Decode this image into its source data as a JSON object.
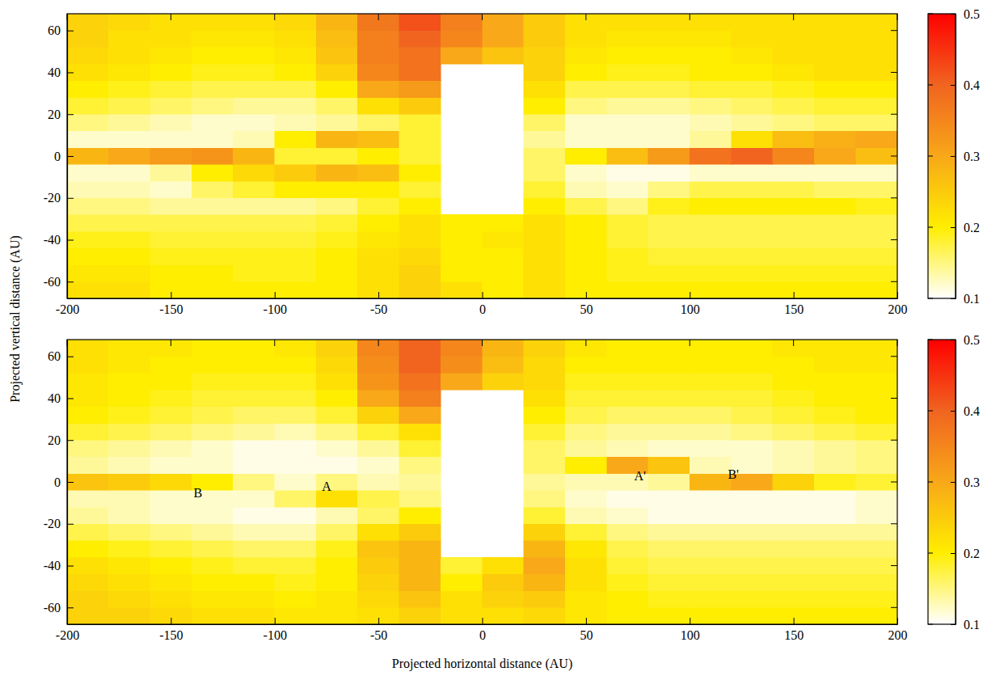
{
  "chart_data": [
    {
      "type": "heatmap",
      "y_label": "Projected vertical distance (AU)",
      "xlim": [
        -200,
        200
      ],
      "ylim": [
        -68,
        68
      ],
      "xticks": [
        -200,
        -150,
        -100,
        -50,
        0,
        50,
        100,
        150,
        200
      ],
      "yticks": [
        -60,
        -40,
        -20,
        0,
        20,
        40,
        60
      ],
      "x_edges": [
        -200,
        -180,
        -160,
        -140,
        -120,
        -100,
        -80,
        -60,
        -40,
        -20,
        0,
        20,
        40,
        60,
        80,
        100,
        120,
        140,
        160,
        180,
        200
      ],
      "y_edges": [
        -68,
        -60,
        -52,
        -44,
        -36,
        -28,
        -20,
        -12,
        -4,
        4,
        12,
        20,
        28,
        36,
        44,
        52,
        60,
        68
      ],
      "z": [
        [
          0.22,
          0.22,
          0.2,
          0.2,
          0.2,
          0.2,
          0.2,
          0.22,
          0.24,
          0.22,
          0.2,
          0.22,
          0.2,
          0.2,
          0.2,
          0.2,
          0.2,
          0.2,
          0.2,
          0.2
        ],
        [
          0.21,
          0.21,
          0.2,
          0.2,
          0.19,
          0.19,
          0.2,
          0.22,
          0.24,
          0.2,
          0.2,
          0.22,
          0.2,
          0.19,
          0.19,
          0.19,
          0.19,
          0.19,
          0.19,
          0.19
        ],
        [
          0.2,
          0.2,
          0.19,
          0.19,
          0.19,
          0.19,
          0.2,
          0.22,
          0.23,
          0.2,
          0.2,
          0.22,
          0.2,
          0.19,
          0.18,
          0.18,
          0.18,
          0.18,
          0.18,
          0.18
        ],
        [
          0.19,
          0.19,
          0.18,
          0.18,
          0.18,
          0.18,
          0.19,
          0.21,
          0.22,
          0.2,
          0.21,
          0.22,
          0.2,
          0.18,
          0.17,
          0.17,
          0.17,
          0.17,
          0.17,
          0.17
        ],
        [
          0.17,
          0.17,
          0.17,
          0.17,
          0.17,
          0.17,
          0.18,
          0.2,
          0.22,
          0.2,
          0.2,
          0.22,
          0.2,
          0.18,
          0.17,
          0.17,
          0.17,
          0.17,
          0.17,
          0.17
        ],
        [
          0.15,
          0.15,
          0.14,
          0.14,
          0.14,
          0.14,
          0.15,
          0.18,
          0.2,
          null,
          null,
          0.2,
          0.17,
          0.15,
          0.19,
          0.2,
          0.2,
          0.2,
          0.2,
          0.19
        ],
        [
          0.13,
          0.13,
          0.12,
          0.16,
          0.18,
          0.2,
          0.2,
          0.2,
          0.18,
          null,
          null,
          0.18,
          0.13,
          0.12,
          0.15,
          0.17,
          0.17,
          0.17,
          0.16,
          0.16
        ],
        [
          0.12,
          0.12,
          0.14,
          0.2,
          0.23,
          0.25,
          0.28,
          0.27,
          0.2,
          null,
          null,
          0.16,
          0.12,
          0.11,
          0.11,
          0.12,
          0.12,
          0.12,
          0.12,
          0.12
        ],
        [
          0.28,
          0.3,
          0.32,
          0.33,
          0.28,
          0.18,
          0.18,
          0.2,
          0.18,
          null,
          null,
          0.16,
          0.2,
          0.27,
          0.32,
          0.38,
          0.4,
          0.35,
          0.3,
          0.27
        ],
        [
          0.12,
          0.12,
          0.12,
          0.12,
          0.13,
          0.2,
          0.28,
          0.27,
          0.18,
          null,
          null,
          0.14,
          0.12,
          0.12,
          0.12,
          0.14,
          0.22,
          0.27,
          0.29,
          0.3
        ],
        [
          0.15,
          0.14,
          0.13,
          0.12,
          0.12,
          0.13,
          0.14,
          0.16,
          0.18,
          null,
          null,
          0.16,
          0.12,
          0.12,
          0.12,
          0.13,
          0.14,
          0.15,
          0.16,
          0.16
        ],
        [
          0.18,
          0.17,
          0.16,
          0.15,
          0.14,
          0.14,
          0.16,
          0.22,
          0.25,
          null,
          null,
          0.2,
          0.15,
          0.14,
          0.14,
          0.15,
          0.16,
          0.17,
          0.18,
          0.18
        ],
        [
          0.2,
          0.19,
          0.18,
          0.17,
          0.17,
          0.17,
          0.2,
          0.3,
          0.32,
          null,
          null,
          0.22,
          0.17,
          0.17,
          0.17,
          0.18,
          0.18,
          0.19,
          0.2,
          0.2
        ],
        [
          0.22,
          0.21,
          0.2,
          0.19,
          0.19,
          0.2,
          0.24,
          0.35,
          0.38,
          null,
          null,
          0.24,
          0.2,
          0.19,
          0.19,
          0.2,
          0.2,
          0.21,
          0.22,
          0.22
        ],
        [
          0.23,
          0.22,
          0.21,
          0.2,
          0.2,
          0.21,
          0.26,
          0.36,
          0.38,
          0.3,
          0.26,
          0.24,
          0.21,
          0.2,
          0.2,
          0.2,
          0.21,
          0.22,
          0.22,
          0.22
        ],
        [
          0.24,
          0.22,
          0.22,
          0.21,
          0.21,
          0.22,
          0.27,
          0.36,
          0.4,
          0.35,
          0.3,
          0.25,
          0.22,
          0.21,
          0.21,
          0.21,
          0.22,
          0.22,
          0.22,
          0.22
        ],
        [
          0.24,
          0.23,
          0.22,
          0.22,
          0.22,
          0.23,
          0.28,
          0.37,
          0.42,
          0.36,
          0.3,
          0.25,
          0.22,
          0.22,
          0.22,
          0.22,
          0.22,
          0.22,
          0.22,
          0.22
        ]
      ],
      "colorbar": {
        "range": [
          0.1,
          0.5
        ],
        "ticks": [
          0.1,
          0.2,
          0.3,
          0.4,
          0.5
        ]
      }
    },
    {
      "type": "heatmap",
      "x_label": "Projected horizontal distance (AU)",
      "xlim": [
        -200,
        200
      ],
      "ylim": [
        -68,
        68
      ],
      "xticks": [
        -200,
        -150,
        -100,
        -50,
        0,
        50,
        100,
        150,
        200
      ],
      "yticks": [
        -60,
        -40,
        -20,
        0,
        20,
        40,
        60
      ],
      "x_edges": [
        -200,
        -180,
        -160,
        -140,
        -120,
        -100,
        -80,
        -60,
        -40,
        -20,
        0,
        20,
        40,
        60,
        80,
        100,
        120,
        140,
        160,
        180,
        200
      ],
      "y_edges": [
        -68,
        -60,
        -52,
        -44,
        -36,
        -28,
        -20,
        -12,
        -4,
        4,
        12,
        20,
        28,
        36,
        44,
        52,
        60,
        68
      ],
      "z": [
        [
          0.24,
          0.24,
          0.23,
          0.22,
          0.22,
          0.21,
          0.21,
          0.22,
          0.24,
          0.22,
          0.22,
          0.23,
          0.21,
          0.2,
          0.2,
          0.2,
          0.2,
          0.2,
          0.2,
          0.2
        ],
        [
          0.24,
          0.23,
          0.22,
          0.21,
          0.21,
          0.2,
          0.21,
          0.23,
          0.26,
          0.22,
          0.24,
          0.25,
          0.21,
          0.2,
          0.19,
          0.19,
          0.19,
          0.19,
          0.19,
          0.19
        ],
        [
          0.23,
          0.22,
          0.21,
          0.2,
          0.2,
          0.19,
          0.2,
          0.24,
          0.28,
          0.2,
          0.25,
          0.28,
          0.22,
          0.19,
          0.18,
          0.18,
          0.18,
          0.18,
          0.18,
          0.18
        ],
        [
          0.22,
          0.21,
          0.2,
          0.19,
          0.18,
          0.18,
          0.2,
          0.25,
          0.28,
          0.18,
          0.22,
          0.3,
          0.22,
          0.18,
          0.17,
          0.17,
          0.17,
          0.17,
          0.17,
          0.17
        ],
        [
          0.2,
          0.19,
          0.18,
          0.17,
          0.16,
          0.16,
          0.19,
          0.26,
          0.28,
          null,
          null,
          0.28,
          0.21,
          0.17,
          0.16,
          0.16,
          0.16,
          0.16,
          0.16,
          0.16
        ],
        [
          0.17,
          0.16,
          0.15,
          0.14,
          0.13,
          0.13,
          0.16,
          0.22,
          0.25,
          null,
          null,
          0.24,
          0.18,
          0.15,
          0.14,
          0.14,
          0.14,
          0.14,
          0.14,
          0.14
        ],
        [
          0.14,
          0.13,
          0.12,
          0.12,
          0.11,
          0.11,
          0.13,
          0.16,
          0.2,
          null,
          null,
          0.18,
          0.13,
          0.12,
          0.11,
          0.11,
          0.11,
          0.11,
          0.11,
          0.12
        ],
        [
          0.13,
          0.13,
          0.12,
          0.12,
          0.12,
          0.16,
          0.22,
          0.17,
          0.15,
          null,
          null,
          0.15,
          0.12,
          0.11,
          0.11,
          0.11,
          0.11,
          0.11,
          0.11,
          0.12
        ],
        [
          0.26,
          0.25,
          0.23,
          0.2,
          0.15,
          0.12,
          0.15,
          0.13,
          0.14,
          null,
          null,
          0.14,
          0.13,
          0.13,
          0.14,
          0.28,
          0.3,
          0.24,
          0.19,
          0.18
        ],
        [
          0.14,
          0.13,
          0.12,
          0.12,
          0.11,
          0.11,
          0.11,
          0.12,
          0.15,
          null,
          null,
          0.16,
          0.2,
          0.3,
          0.26,
          0.13,
          0.12,
          0.13,
          0.14,
          0.15
        ],
        [
          0.15,
          0.14,
          0.13,
          0.12,
          0.11,
          0.11,
          0.12,
          0.14,
          0.18,
          null,
          null,
          0.16,
          0.14,
          0.13,
          0.12,
          0.12,
          0.12,
          0.13,
          0.14,
          0.15
        ],
        [
          0.18,
          0.17,
          0.16,
          0.15,
          0.14,
          0.13,
          0.15,
          0.18,
          0.22,
          null,
          null,
          0.18,
          0.15,
          0.14,
          0.14,
          0.14,
          0.15,
          0.16,
          0.17,
          0.18
        ],
        [
          0.2,
          0.19,
          0.18,
          0.17,
          0.16,
          0.16,
          0.18,
          0.24,
          0.3,
          null,
          null,
          0.2,
          0.17,
          0.16,
          0.16,
          0.16,
          0.17,
          0.18,
          0.19,
          0.2
        ],
        [
          0.21,
          0.2,
          0.19,
          0.18,
          0.18,
          0.18,
          0.2,
          0.3,
          0.36,
          null,
          null,
          0.22,
          0.18,
          0.18,
          0.18,
          0.18,
          0.18,
          0.19,
          0.2,
          0.2
        ],
        [
          0.21,
          0.2,
          0.2,
          0.19,
          0.19,
          0.19,
          0.22,
          0.33,
          0.38,
          0.3,
          0.24,
          0.23,
          0.19,
          0.19,
          0.19,
          0.19,
          0.19,
          0.2,
          0.2,
          0.2
        ],
        [
          0.22,
          0.21,
          0.2,
          0.2,
          0.2,
          0.2,
          0.23,
          0.34,
          0.4,
          0.34,
          0.27,
          0.23,
          0.2,
          0.2,
          0.2,
          0.2,
          0.2,
          0.2,
          0.21,
          0.21
        ],
        [
          0.22,
          0.21,
          0.21,
          0.2,
          0.2,
          0.21,
          0.24,
          0.35,
          0.4,
          0.35,
          0.28,
          0.24,
          0.21,
          0.2,
          0.2,
          0.2,
          0.2,
          0.21,
          0.21,
          0.21
        ]
      ],
      "colorbar": {
        "range": [
          0.1,
          0.5
        ],
        "ticks": [
          0.1,
          0.2,
          0.3,
          0.4,
          0.5
        ]
      },
      "annotations": [
        {
          "text": "B",
          "x": -137,
          "y": -6
        },
        {
          "text": "A",
          "x": -75,
          "y": -3
        },
        {
          "text": "A'",
          "x": 76,
          "y": 2
        },
        {
          "text": "B'",
          "x": 121,
          "y": 3
        }
      ]
    }
  ]
}
